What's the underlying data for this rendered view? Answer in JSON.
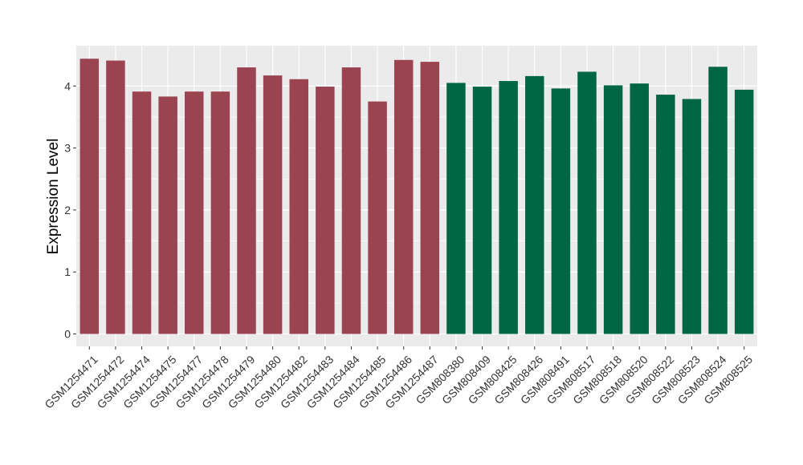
{
  "chart_data": {
    "type": "bar",
    "ylabel": "Expression Level",
    "xlabel": "",
    "ylim": [
      -0.2,
      4.65
    ],
    "yticks": [
      0,
      1,
      2,
      3,
      4
    ],
    "grid": true,
    "categories": [
      "GSM1254471",
      "GSM1254472",
      "GSM1254474",
      "GSM1254475",
      "GSM1254477",
      "GSM1254478",
      "GSM1254479",
      "GSM1254480",
      "GSM1254482",
      "GSM1254483",
      "GSM1254484",
      "GSM1254485",
      "GSM1254486",
      "GSM1254487",
      "GSM808380",
      "GSM808409",
      "GSM808425",
      "GSM808426",
      "GSM808491",
      "GSM808517",
      "GSM808518",
      "GSM808520",
      "GSM808522",
      "GSM808523",
      "GSM808524",
      "GSM808525"
    ],
    "values": [
      4.44,
      4.41,
      3.91,
      3.83,
      3.91,
      3.91,
      4.3,
      4.17,
      4.11,
      3.99,
      4.3,
      3.75,
      4.42,
      4.39,
      4.05,
      3.99,
      4.08,
      4.16,
      3.96,
      4.23,
      4.01,
      4.04,
      3.86,
      3.79,
      4.31,
      3.94
    ],
    "groups": [
      0,
      0,
      0,
      0,
      0,
      0,
      0,
      0,
      0,
      0,
      0,
      0,
      0,
      0,
      1,
      1,
      1,
      1,
      1,
      1,
      1,
      1,
      1,
      1,
      1,
      1
    ],
    "group_colors": [
      "#9B4351",
      "#006644"
    ],
    "panel_background": "#EBEBEB",
    "grid_color": "#FFFFFF"
  }
}
